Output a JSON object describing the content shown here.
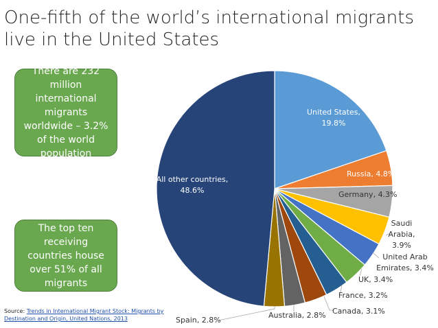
{
  "chart_data": {
    "type": "pie",
    "title": "One-fifth of the world’s international migrants live in the United States",
    "categories": [
      "United States",
      "Russia",
      "Germany",
      "Saudi Arabia",
      "United Arab Emirates",
      "UK",
      "France",
      "Canada",
      "Australia",
      "Spain",
      "All other countries"
    ],
    "values": [
      19.8,
      4.8,
      4.3,
      3.9,
      3.4,
      3.4,
      3.2,
      3.1,
      2.8,
      2.8,
      48.6
    ],
    "value_labels": [
      "19.8%",
      "4.8%",
      "4.3%",
      "3.9%",
      "3.4%",
      "3.4%",
      "3.2%",
      "3.1%",
      "2.8%",
      "2.8%",
      "48.6%"
    ],
    "label_separator": ",",
    "colors": [
      "#5b9bd5",
      "#ed7d31",
      "#a5a5a5",
      "#ffc000",
      "#4472c4",
      "#70ad47",
      "#255e91",
      "#9e480e",
      "#636363",
      "#997300",
      "#264478"
    ],
    "callouts": [
      "There are 232 million international migrants worldwide – 3.2% of the world population",
      "The top ten receiving countries house over 51% of all migrants"
    ],
    "source": {
      "prefix": "Source:",
      "link": "Trends in International Migrant Stock: Migrants by Destination and Origin, United Nations, 2013"
    }
  }
}
